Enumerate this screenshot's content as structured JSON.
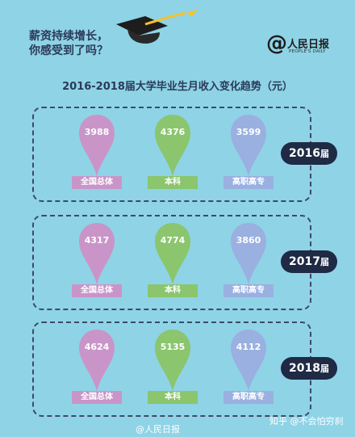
{
  "header": {
    "headline_line1": "薪资持续增长，",
    "headline_line2": "你感受到了吗？",
    "logo_main": "人民日报",
    "logo_sub": "PEOPLE'S DAILY"
  },
  "chart_data": {
    "type": "bar",
    "title": "2016-2018届大学毕业生月收入变化趋势（元）",
    "categories": [
      "全国总体",
      "本科",
      "高职高专"
    ],
    "series": [
      {
        "name": "2016届",
        "year": "2016",
        "suffix": "届",
        "values": [
          3988,
          4376,
          3599
        ]
      },
      {
        "name": "2017届",
        "year": "2017",
        "suffix": "届",
        "values": [
          4317,
          4774,
          3860
        ]
      },
      {
        "name": "2018届",
        "year": "2018",
        "suffix": "届",
        "values": [
          4624,
          5135,
          4112
        ]
      }
    ]
  },
  "colors": {
    "background": "#8fd3e6",
    "overall": "#c995c8",
    "bachelor": "#8bc56d",
    "vocational": "#9ab0e0",
    "badge": "#1f2a44"
  },
  "watermarks": {
    "weibo": "@人民日报",
    "zhihu": "知乎 @不会怕穷刹"
  }
}
